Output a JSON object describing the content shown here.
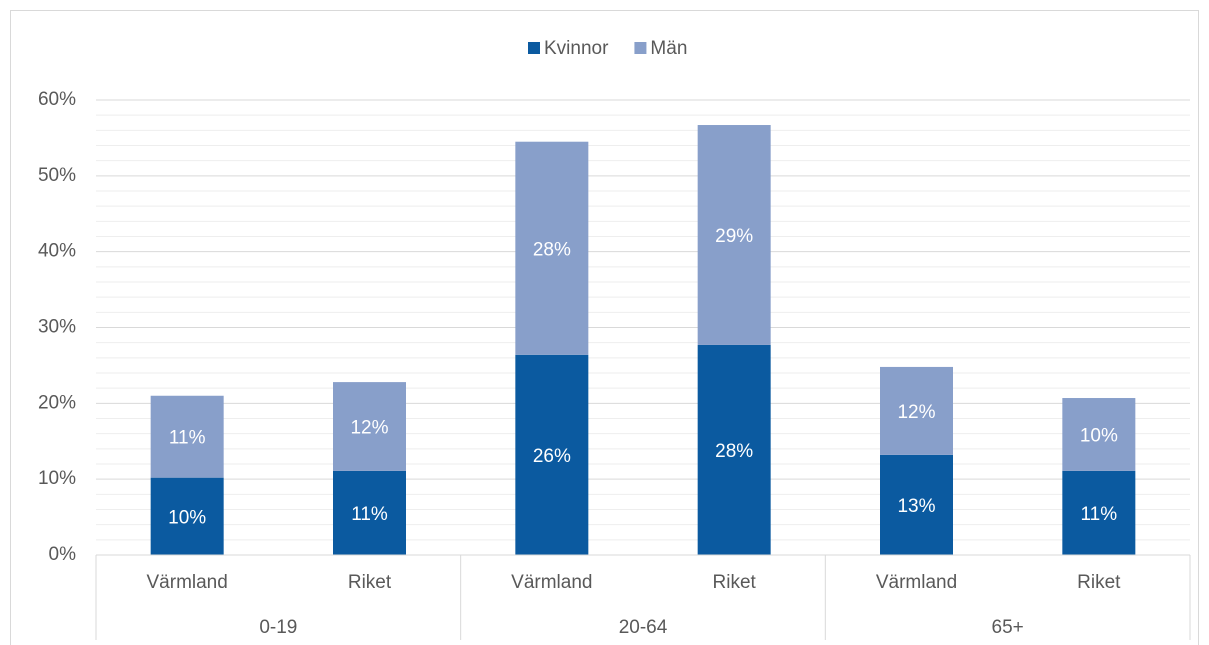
{
  "chart_data": {
    "type": "stacked_bar",
    "categories": [
      "Värmland",
      "Riket",
      "Värmland",
      "Riket",
      "Värmland",
      "Riket"
    ],
    "groups": [
      "0-19",
      "20-64",
      "65+"
    ],
    "series": [
      {
        "name": "Kvinnor",
        "color": "#0b5aa0",
        "values": [
          10.2,
          11.1,
          26.4,
          27.7,
          13.2,
          11.1
        ],
        "value_labels": [
          "10%",
          "11%",
          "26%",
          "28%",
          "13%",
          "11%"
        ]
      },
      {
        "name": "Män",
        "color": "#889fca",
        "values": [
          10.8,
          11.7,
          28.1,
          29.0,
          11.6,
          9.6
        ],
        "value_labels": [
          "11%",
          "12%",
          "28%",
          "29%",
          "12%",
          "10%"
        ]
      }
    ],
    "ylim": [
      0,
      60
    ],
    "yticks": [
      {
        "value": 0,
        "label": "0%"
      },
      {
        "value": 10,
        "label": "10%"
      },
      {
        "value": 20,
        "label": "20%"
      },
      {
        "value": 30,
        "label": "30%"
      },
      {
        "value": 40,
        "label": "40%"
      },
      {
        "value": 50,
        "label": "50%"
      },
      {
        "value": 60,
        "label": "60%"
      }
    ],
    "minor_yticks": [
      2,
      4,
      6,
      8,
      12,
      14,
      16,
      18,
      22,
      24,
      26,
      28,
      32,
      34,
      36,
      38,
      42,
      44,
      46,
      48,
      52,
      54,
      56,
      58
    ],
    "grid": true,
    "legend": "top"
  }
}
